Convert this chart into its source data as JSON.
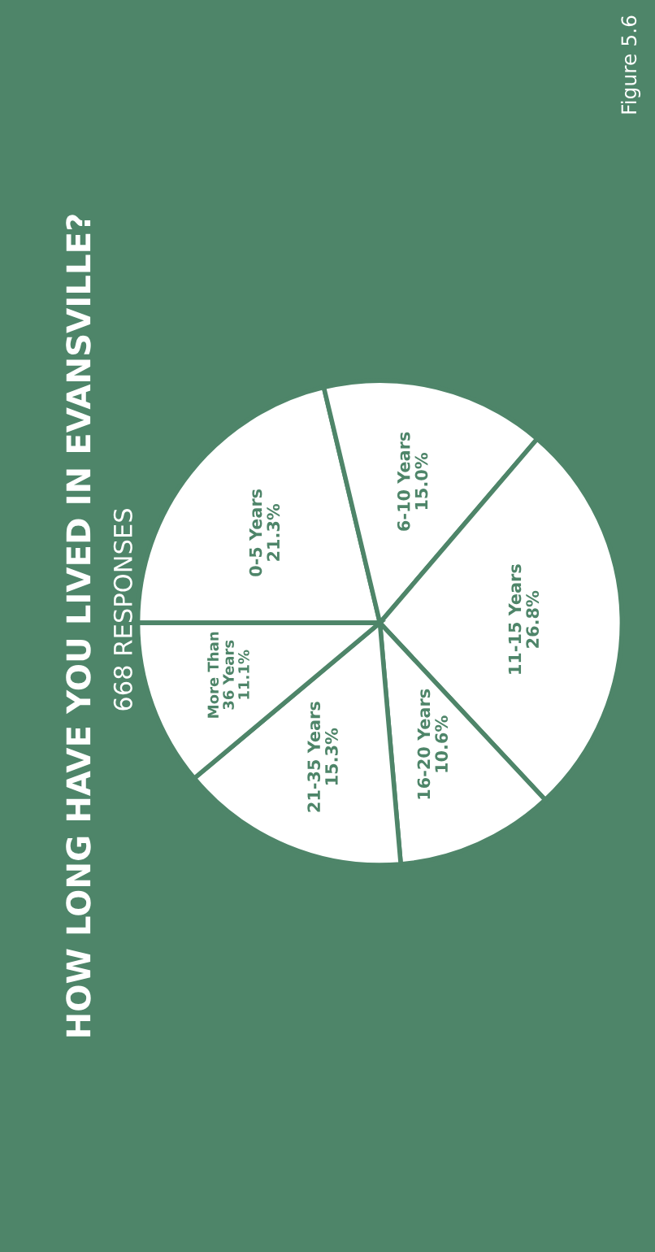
{
  "chart_data": {
    "type": "pie",
    "title": "HOW LONG HAVE YOU LIVED IN EVANSVILLE?",
    "subtitle": "668 RESPONSES",
    "annotations": [
      "Figure 5.6"
    ],
    "categories": [
      "0-5 Years",
      "6-10 Years",
      "11-15 Years",
      "16-20 Years",
      "21-35 Years",
      "More Than 36 Years"
    ],
    "values": [
      21.3,
      15.0,
      26.8,
      10.6,
      15.3,
      11.1
    ],
    "colors": [
      "#ffffff",
      "#ffffff",
      "#ffffff",
      "#ffffff",
      "#ffffff",
      "#ffffff"
    ],
    "value_labels": [
      "21.3%",
      "15.0%",
      "26.8%",
      "10.6%",
      "15.3%",
      "11.1%"
    ],
    "legend": false
  }
}
